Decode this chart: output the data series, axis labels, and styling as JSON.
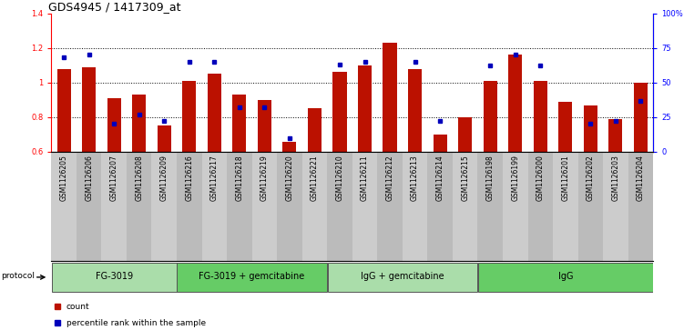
{
  "title": "GDS4945 / 1417309_at",
  "samples": [
    "GSM1126205",
    "GSM1126206",
    "GSM1126207",
    "GSM1126208",
    "GSM1126209",
    "GSM1126216",
    "GSM1126217",
    "GSM1126218",
    "GSM1126219",
    "GSM1126220",
    "GSM1126221",
    "GSM1126210",
    "GSM1126211",
    "GSM1126212",
    "GSM1126213",
    "GSM1126214",
    "GSM1126215",
    "GSM1126198",
    "GSM1126199",
    "GSM1126200",
    "GSM1126201",
    "GSM1126202",
    "GSM1126203",
    "GSM1126204"
  ],
  "counts": [
    1.08,
    1.09,
    0.91,
    0.93,
    0.75,
    1.01,
    1.05,
    0.93,
    0.9,
    0.66,
    0.85,
    1.06,
    1.1,
    1.23,
    1.08,
    0.7,
    0.8,
    1.01,
    1.16,
    1.01,
    0.89,
    0.87,
    0.79,
    1.0
  ],
  "percentiles": [
    68,
    70,
    20,
    27,
    22,
    65,
    65,
    32,
    32,
    10,
    null,
    63,
    65,
    null,
    65,
    22,
    null,
    62,
    70,
    62,
    null,
    20,
    22,
    37
  ],
  "groups": [
    {
      "label": "FG-3019",
      "start": 0,
      "end": 5
    },
    {
      "label": "FG-3019 + gemcitabine",
      "start": 5,
      "end": 11
    },
    {
      "label": "IgG + gemcitabine",
      "start": 11,
      "end": 17
    },
    {
      "label": "IgG",
      "start": 17,
      "end": 24
    }
  ],
  "group_colors": [
    "#b8e8b8",
    "#90ee90",
    "#b8e8b8",
    "#66dd66"
  ],
  "ylim_left": [
    0.6,
    1.4
  ],
  "ylim_right": [
    0,
    100
  ],
  "yticks_left": [
    0.6,
    0.8,
    1.0,
    1.2,
    1.4
  ],
  "ytick_labels_left": [
    "0.6",
    "0.8",
    "1",
    "1.2",
    "1.4"
  ],
  "yticks_right": [
    0,
    25,
    50,
    75,
    100
  ],
  "ytick_labels_right": [
    "0",
    "25",
    "50",
    "75",
    "100%"
  ],
  "bar_color": "#BB1100",
  "dot_color": "#0000BB",
  "bar_width": 0.55,
  "title_fontsize": 9,
  "tick_fontsize": 6,
  "sample_fontsize": 5.5,
  "group_fontsize": 7,
  "legend_fontsize": 6.5,
  "col_colors": [
    "#cccccc",
    "#bbbbbb"
  ]
}
